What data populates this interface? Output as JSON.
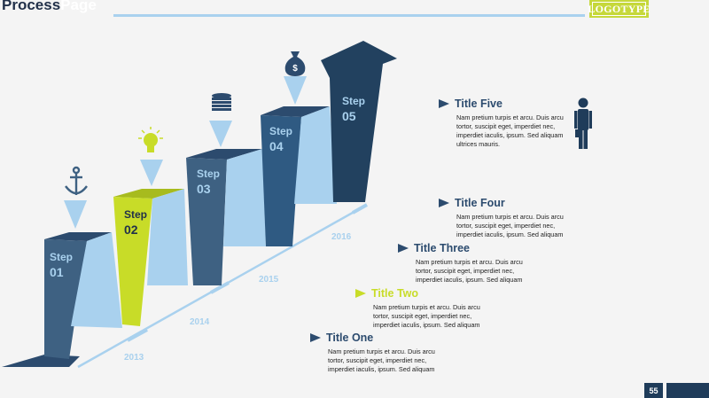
{
  "header": {
    "title_dark": "Process",
    "title_light": "Page",
    "logo": "LOGOTYPE"
  },
  "steps": [
    {
      "label": "Step",
      "num": "01",
      "icon": "anchor-icon"
    },
    {
      "label": "Step",
      "num": "02",
      "icon": "lightbulb-icon"
    },
    {
      "label": "Step",
      "num": "03",
      "icon": "coins-icon"
    },
    {
      "label": "Step",
      "num": "04",
      "icon": "money-bag-icon"
    },
    {
      "label": "Step",
      "num": "05",
      "icon": "arrow-up-icon"
    }
  ],
  "years": [
    "2013",
    "2014",
    "2015",
    "2016"
  ],
  "items": [
    {
      "title": "Title Five",
      "desc": "Nam pretium turpis et arcu. Duis arcu tortor, suscipit eget, imperdiet nec, imperdiet iaculis, ipsum. Sed aliquam ultrices mauris."
    },
    {
      "title": "Title Four",
      "desc": "Nam pretium turpis et arcu. Duis arcu tortor, suscipit eget, imperdiet nec, imperdiet iaculis, ipsum. Sed aliquam"
    },
    {
      "title": "Title Three",
      "desc": "Nam pretium turpis et arcu. Duis arcu tortor, suscipit eget, imperdiet nec, imperdiet iaculis, ipsum. Sed aliquam"
    },
    {
      "title": "Title Two",
      "desc": "Nam pretium turpis et arcu. Duis arcu tortor, suscipit eget, imperdiet nec, imperdiet iaculis, ipsum. Sed aliquam"
    },
    {
      "title": "Title One",
      "desc": "Nam pretium turpis et arcu. Duis arcu tortor, suscipit eget, imperdiet nec, imperdiet iaculis, ipsum. Sed aliquam"
    }
  ],
  "money_symbol": "$",
  "page_number": "55",
  "colors": {
    "dark_navy": "#2c4b6e",
    "slate": "#3e6182",
    "light_blue": "#a9d1ee",
    "lime": "#c8dc28",
    "background": "#f4f4f4"
  }
}
